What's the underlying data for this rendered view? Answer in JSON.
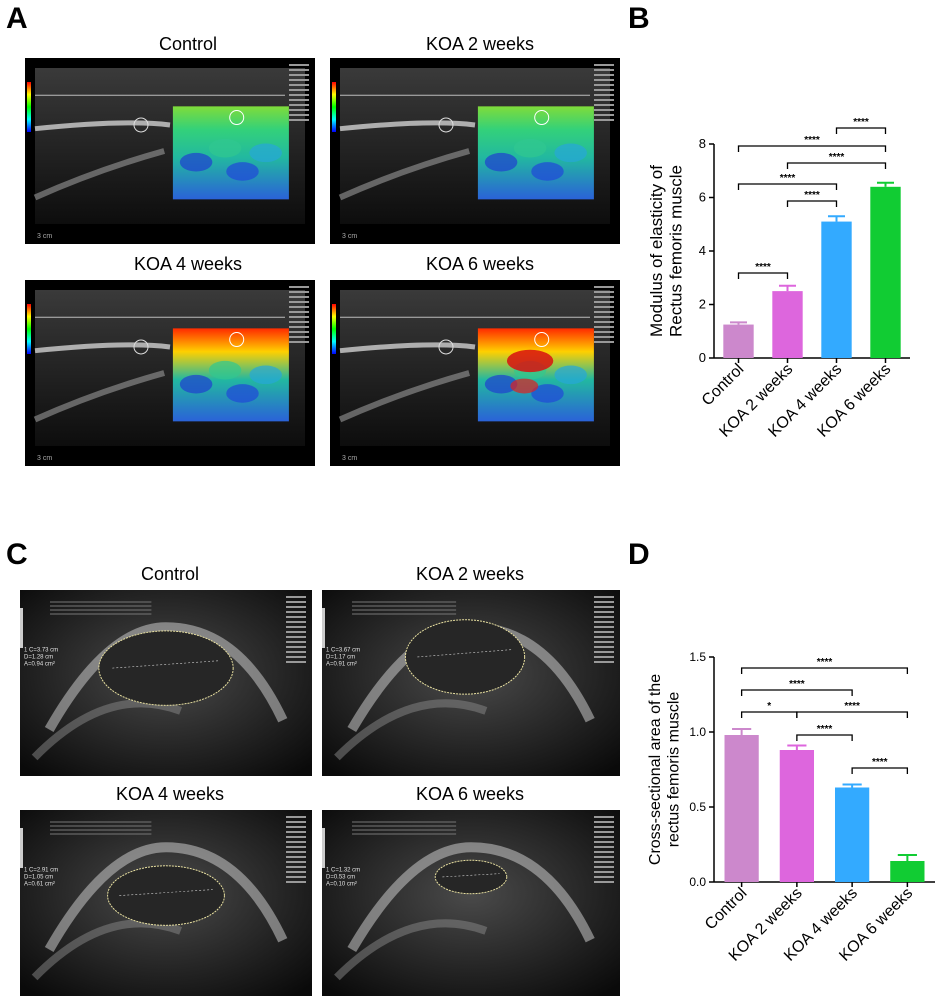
{
  "panels": {
    "A": {
      "letter": "A",
      "images": [
        {
          "title": "Control",
          "left_caption": "3 cm",
          "mode": "elasto",
          "stiffness": 0.1
        },
        {
          "title": "KOA 2 weeks",
          "left_caption": "3 cm",
          "mode": "elasto",
          "stiffness": 0.2
        },
        {
          "title": "KOA 4 weeks",
          "left_caption": "3 cm",
          "mode": "elasto",
          "stiffness": 0.6
        },
        {
          "title": "KOA 6 weeks",
          "left_caption": "3 cm",
          "mode": "elasto",
          "stiffness": 0.9
        }
      ]
    },
    "B": {
      "letter": "B"
    },
    "C": {
      "letter": "C",
      "images": [
        {
          "title": "Control",
          "measure": [
            "1 C=3.73 cm",
            "D=1.28 cm",
            "A=0.94 cm²"
          ]
        },
        {
          "title": "KOA 2 weeks",
          "measure": [
            "1 C=3.67 cm",
            "D=1.17 cm",
            "A=0.91 cm²"
          ]
        },
        {
          "title": "KOA 4 weeks",
          "measure": [
            "1 C=2.91 cm",
            "D=1.05 cm",
            "A=0.61 cm²"
          ]
        },
        {
          "title": "KOA 6 weeks",
          "measure": [
            "1 C=1.32 cm",
            "D=0.53 cm",
            "A=0.10 cm²"
          ]
        }
      ]
    },
    "D": {
      "letter": "D"
    }
  },
  "chart_data": [
    {
      "type": "bar",
      "panel": "B",
      "categories": [
        "Control",
        "KOA 2 weeks",
        "KOA 4 weeks",
        "KOA 6 weeks"
      ],
      "values": [
        1.25,
        2.5,
        5.1,
        6.4
      ],
      "errors": [
        0.08,
        0.2,
        0.2,
        0.15
      ],
      "colors": [
        "#cc88cc",
        "#dd66dd",
        "#33aaff",
        "#11cc33"
      ],
      "ylabel": [
        "Modulus of elasticity of",
        "Rectus femoris muscle"
      ],
      "ylim": [
        0,
        8
      ],
      "yticks": [
        "0",
        "2",
        "4",
        "6",
        "8"
      ],
      "ytick_values": [
        0,
        2,
        4,
        6,
        8
      ],
      "significance": [
        {
          "from": 0,
          "to": 1,
          "label": "****"
        },
        {
          "from": 1,
          "to": 2,
          "label": "****"
        },
        {
          "from": 0,
          "to": 2,
          "label": "****"
        },
        {
          "from": 1,
          "to": 3,
          "label": "****"
        },
        {
          "from": 0,
          "to": 3,
          "label": "****"
        },
        {
          "from": 2,
          "to": 3,
          "label": "****"
        }
      ]
    },
    {
      "type": "bar",
      "panel": "D",
      "categories": [
        "Control",
        "KOA 2 weeks",
        "KOA 4 weeks",
        "KOA 6 weeks"
      ],
      "values": [
        0.98,
        0.88,
        0.63,
        0.14
      ],
      "errors": [
        0.04,
        0.03,
        0.02,
        0.04
      ],
      "colors": [
        "#cc88cc",
        "#dd66dd",
        "#33aaff",
        "#11cc33"
      ],
      "ylabel": [
        "Cross-sectional area of the",
        "rectus femoris muscle"
      ],
      "ylim": [
        0,
        1.5
      ],
      "yticks": [
        "0.0",
        "0.5",
        "1.0",
        "1.5"
      ],
      "ytick_values": [
        0,
        0.5,
        1.0,
        1.5
      ],
      "significance": [
        {
          "from": 0,
          "to": 1,
          "label": "*"
        },
        {
          "from": 1,
          "to": 2,
          "label": "****"
        },
        {
          "from": 0,
          "to": 2,
          "label": "****"
        },
        {
          "from": 1,
          "to": 3,
          "label": "****"
        },
        {
          "from": 0,
          "to": 3,
          "label": "****"
        },
        {
          "from": 2,
          "to": 3,
          "label": "****"
        }
      ]
    }
  ]
}
